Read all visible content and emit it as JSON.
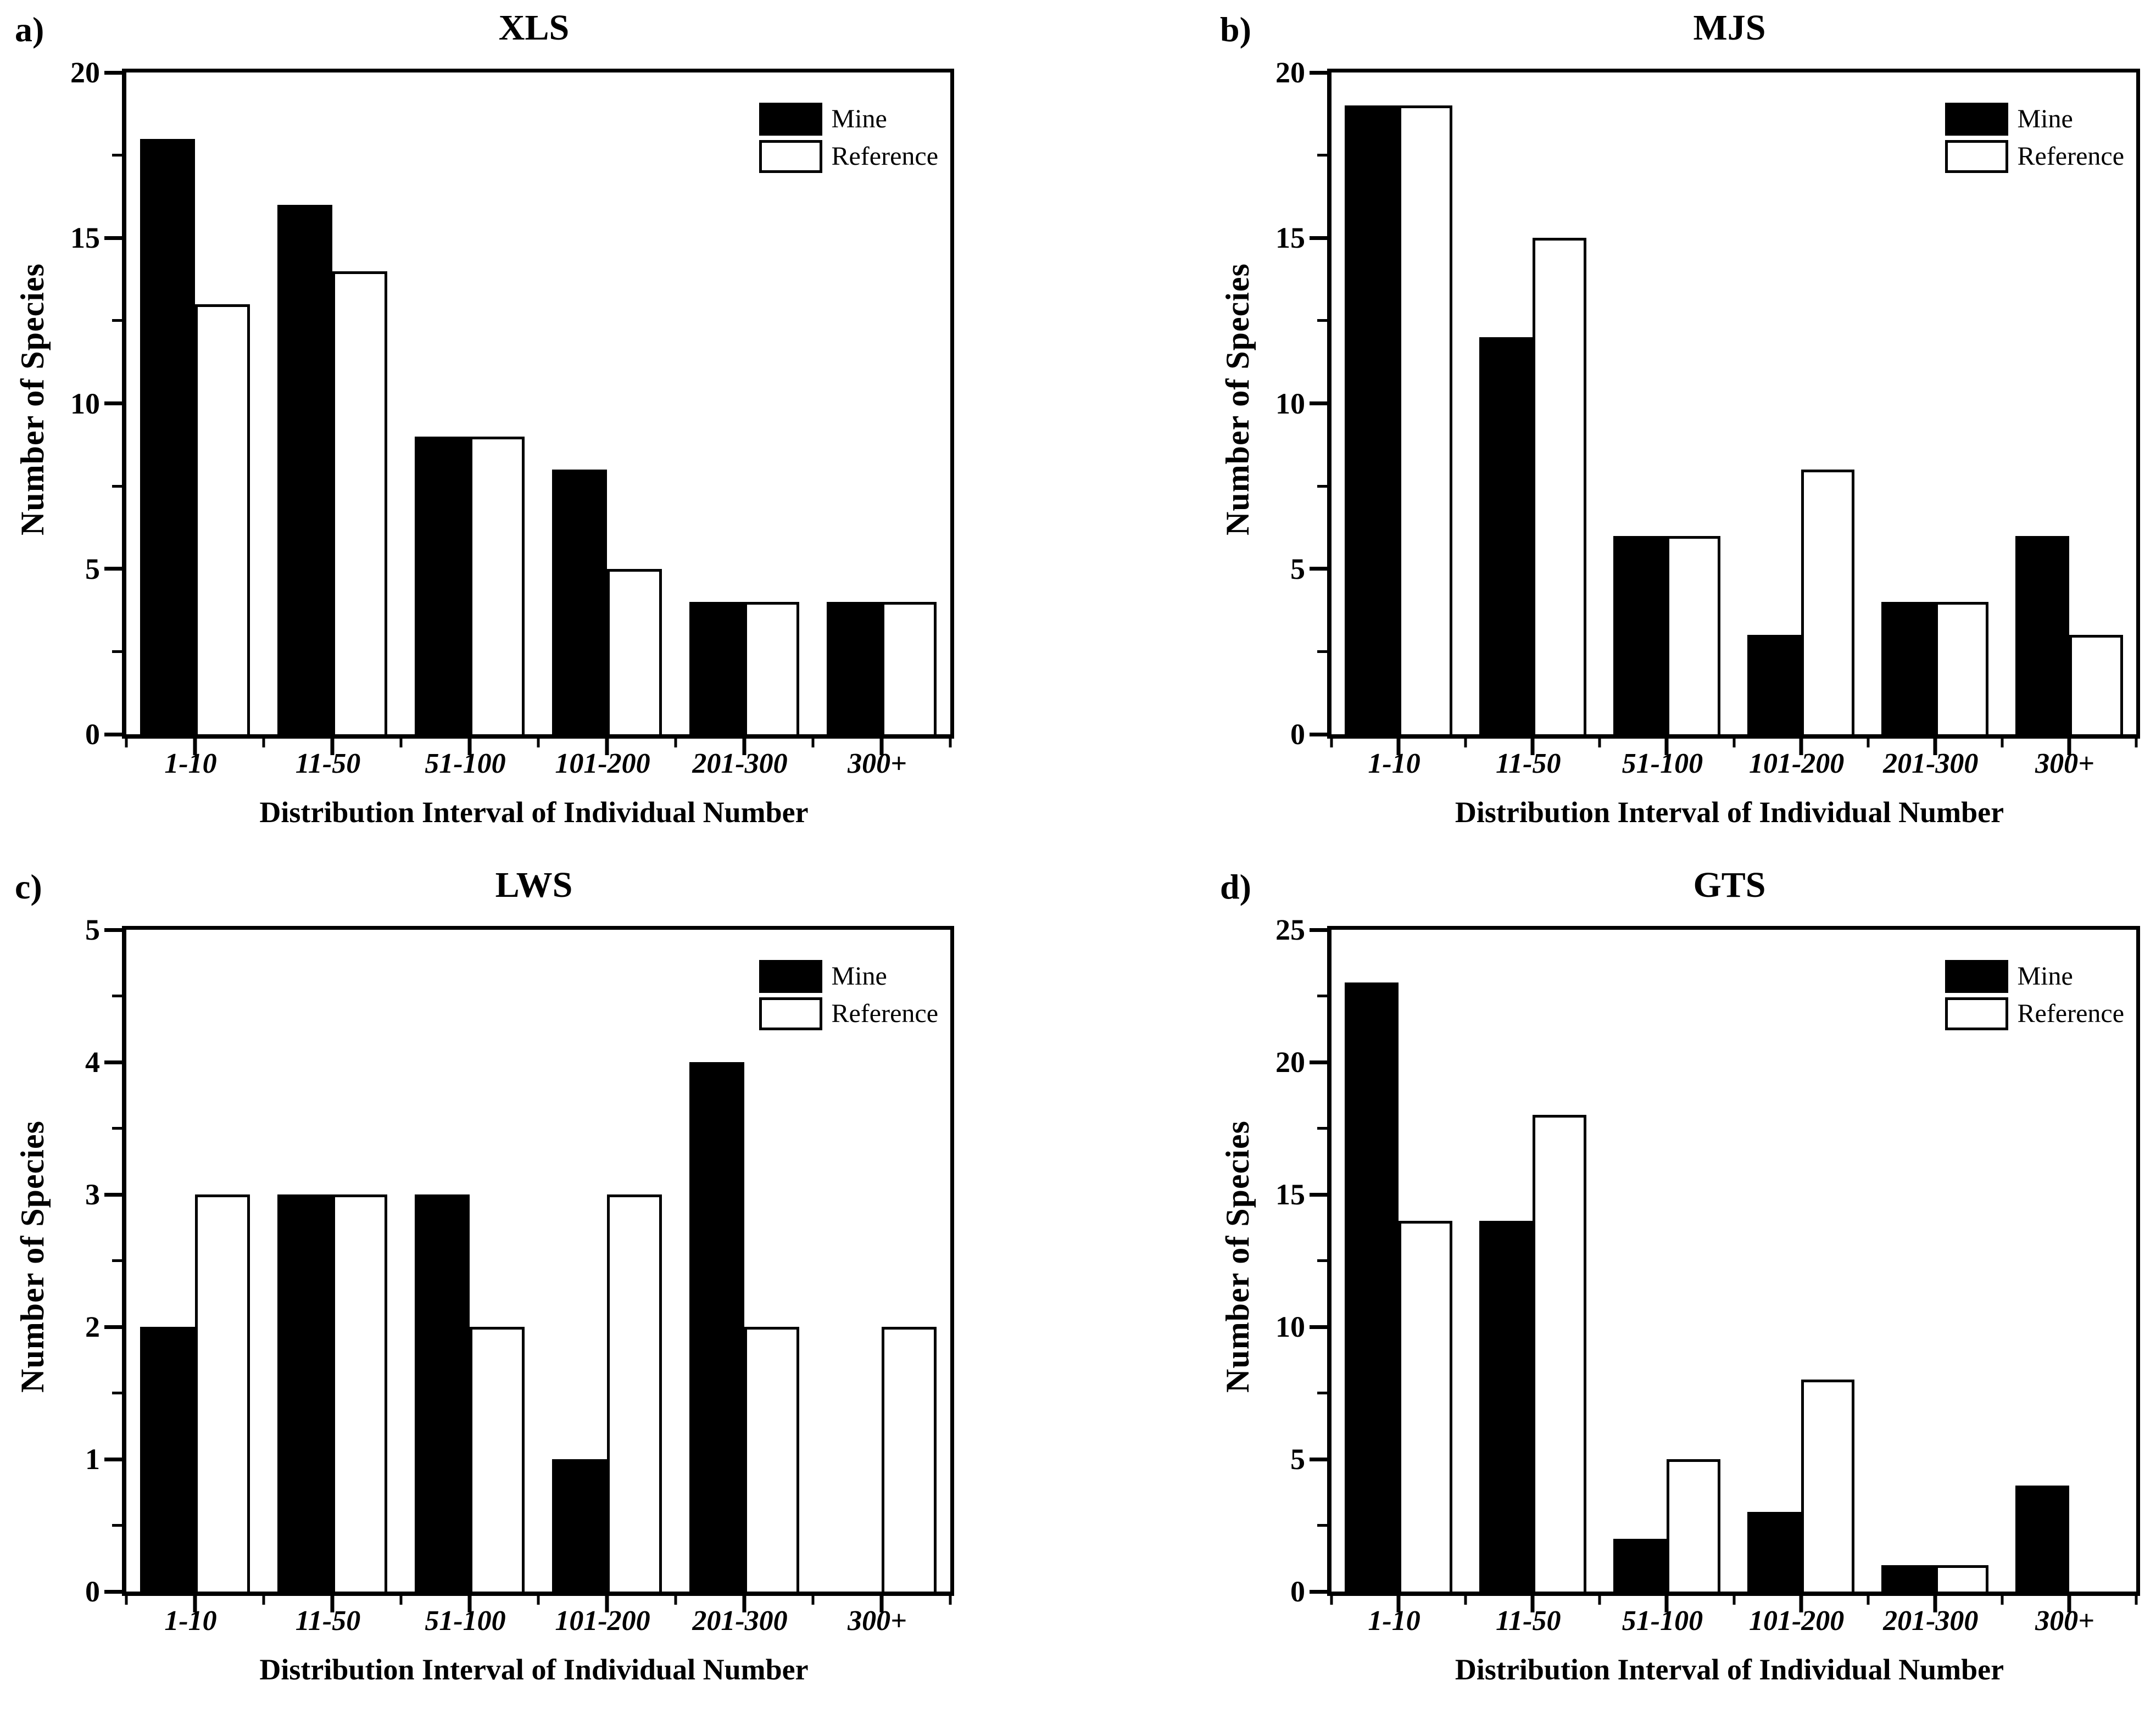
{
  "figure": {
    "ylabel": "Number of Species",
    "xlabel": "Distribution Interval of Individual Number",
    "legend": {
      "mine": "Mine",
      "reference": "Reference"
    },
    "categories": [
      "1-10",
      "11-50",
      "51-100",
      "101-200",
      "201-300",
      "300+"
    ],
    "colors": {
      "bar_mine": "#000000",
      "bar_reference": "#ffffff",
      "axis": "#000000",
      "background": "#ffffff"
    }
  },
  "chart_data": [
    {
      "type": "bar",
      "panel_letter": "a)",
      "title": "XLS",
      "categories": [
        "1-10",
        "11-50",
        "51-100",
        "101-200",
        "201-300",
        "300+"
      ],
      "series": [
        {
          "name": "Mine",
          "values": [
            18,
            16,
            9,
            8,
            4,
            4
          ]
        },
        {
          "name": "Reference",
          "values": [
            13,
            14,
            9,
            5,
            4,
            4
          ]
        }
      ],
      "ylim": [
        0,
        20
      ],
      "yticks": [
        0,
        5,
        10,
        15,
        20
      ],
      "ylabel": "Number of Species",
      "xlabel": "Distribution Interval of Individual Number",
      "legend_position": "top-right",
      "grid": false
    },
    {
      "type": "bar",
      "panel_letter": "b)",
      "title": "MJS",
      "categories": [
        "1-10",
        "11-50",
        "51-100",
        "101-200",
        "201-300",
        "300+"
      ],
      "series": [
        {
          "name": "Mine",
          "values": [
            19,
            12,
            6,
            3,
            4,
            6
          ]
        },
        {
          "name": "Reference",
          "values": [
            19,
            15,
            6,
            8,
            4,
            3
          ]
        }
      ],
      "ylim": [
        0,
        20
      ],
      "yticks": [
        0,
        5,
        10,
        15,
        20
      ],
      "ylabel": "Number of Species",
      "xlabel": "Distribution Interval of Individual Number",
      "legend_position": "top-right",
      "grid": false
    },
    {
      "type": "bar",
      "panel_letter": "c)",
      "title": "LWS",
      "categories": [
        "1-10",
        "11-50",
        "51-100",
        "101-200",
        "201-300",
        "300+"
      ],
      "series": [
        {
          "name": "Mine",
          "values": [
            2,
            3,
            3,
            1,
            4,
            0
          ]
        },
        {
          "name": "Reference",
          "values": [
            3,
            3,
            2,
            3,
            2,
            2
          ]
        }
      ],
      "ylim": [
        0,
        5
      ],
      "yticks": [
        0,
        1,
        2,
        3,
        4,
        5
      ],
      "ylabel": "Number of Species",
      "xlabel": "Distribution Interval of Individual Number",
      "legend_position": "top-right",
      "grid": false
    },
    {
      "type": "bar",
      "panel_letter": "d)",
      "title": "GTS",
      "categories": [
        "1-10",
        "11-50",
        "51-100",
        "101-200",
        "201-300",
        "300+"
      ],
      "series": [
        {
          "name": "Mine",
          "values": [
            23,
            14,
            2,
            3,
            1,
            4
          ]
        },
        {
          "name": "Reference",
          "values": [
            14,
            18,
            5,
            8,
            1,
            0
          ]
        }
      ],
      "ylim": [
        0,
        25
      ],
      "yticks": [
        0,
        5,
        10,
        15,
        20,
        25
      ],
      "ylabel": "Number of Species",
      "xlabel": "Distribution Interval of Individual Number",
      "legend_position": "top-right",
      "grid": false
    }
  ]
}
